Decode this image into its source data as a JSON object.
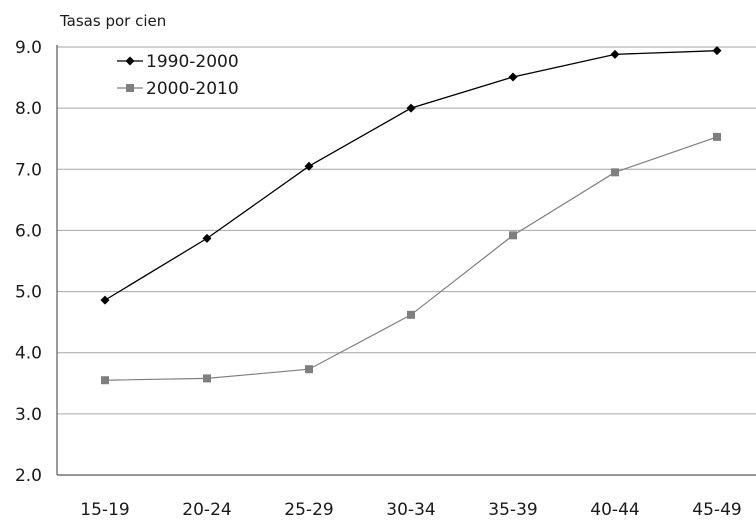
{
  "chart_data": {
    "type": "line",
    "title": "",
    "ylabel": "Tasas por cien",
    "xlabel": "",
    "categories": [
      "15-19",
      "20-24",
      "25-29",
      "30-34",
      "35-39",
      "40-44",
      "45-49"
    ],
    "ylim": [
      2.0,
      9.0
    ],
    "yticks": [
      "2.0",
      "3.0",
      "4.0",
      "5.0",
      "6.0",
      "7.0",
      "8.0",
      "9.0"
    ],
    "grid": true,
    "legend_position": "top-left",
    "series": [
      {
        "name": "1990-2000",
        "values": [
          4.86,
          5.87,
          7.05,
          8.0,
          8.51,
          8.88,
          8.94
        ],
        "color": "#000000",
        "marker": "diamond"
      },
      {
        "name": "2000-2010",
        "values": [
          3.55,
          3.58,
          3.73,
          4.62,
          5.92,
          6.95,
          7.53
        ],
        "color": "#7f7f7f",
        "marker": "square"
      }
    ]
  }
}
